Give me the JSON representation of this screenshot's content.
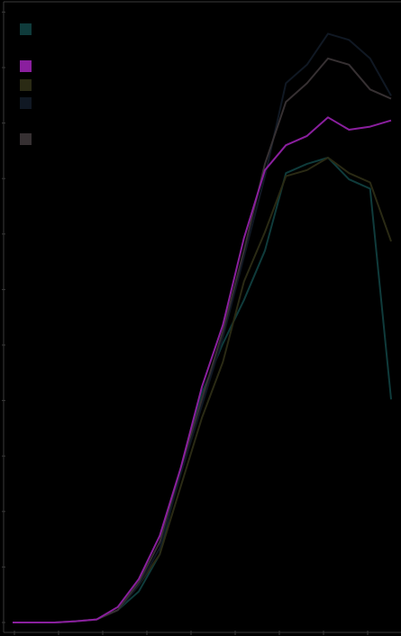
{
  "chart_data": {
    "type": "line",
    "title": "",
    "xlabel": "",
    "ylabel": "",
    "x": [
      0,
      1,
      2,
      3,
      4,
      5,
      6,
      7,
      8,
      9,
      10,
      11,
      12,
      13,
      14,
      15,
      16,
      17,
      18
    ],
    "xlim": [
      0,
      18
    ],
    "ylim": [
      0,
      1
    ],
    "legend_position": "top-left",
    "grid": false,
    "series": [
      {
        "color": "#0f3b3b",
        "values": [
          0,
          0,
          0,
          0.002,
          0.005,
          0.02,
          0.05,
          0.11,
          0.25,
          0.37,
          0.45,
          0.52,
          0.6,
          0.725,
          0.74,
          0.75,
          0.715,
          0.7,
          0.36
        ]
      },
      {
        "color": "#8a1f9e",
        "values": [
          0,
          0,
          0,
          0.002,
          0.005,
          0.025,
          0.07,
          0.14,
          0.25,
          0.38,
          0.48,
          0.62,
          0.73,
          0.77,
          0.785,
          0.815,
          0.795,
          0.8,
          0.81
        ]
      },
      {
        "color": "#2a2a14",
        "values": [
          0,
          0,
          0,
          0.002,
          0.005,
          0.02,
          0.06,
          0.11,
          0.22,
          0.33,
          0.42,
          0.55,
          0.63,
          0.72,
          0.73,
          0.75,
          0.725,
          0.71,
          0.615
        ]
      },
      {
        "color": "#101823",
        "values": [
          0,
          0,
          0,
          0.002,
          0.005,
          0.02,
          0.06,
          0.12,
          0.24,
          0.35,
          0.46,
          0.59,
          0.72,
          0.87,
          0.9,
          0.95,
          0.94,
          0.91,
          0.85
        ]
      },
      {
        "color": "#363032",
        "values": [
          0,
          0,
          0,
          0.002,
          0.005,
          0.02,
          0.065,
          0.13,
          0.25,
          0.36,
          0.47,
          0.6,
          0.74,
          0.84,
          0.87,
          0.91,
          0.9,
          0.86,
          0.845
        ]
      }
    ]
  }
}
